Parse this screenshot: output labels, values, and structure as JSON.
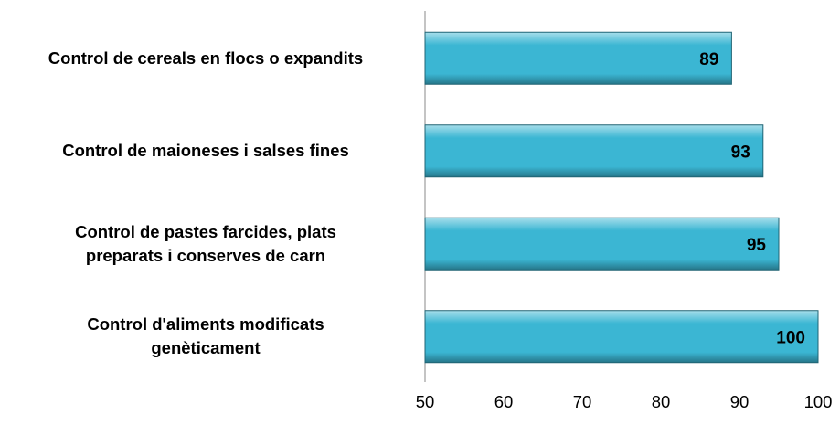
{
  "chart_data": {
    "type": "bar",
    "orientation": "horizontal",
    "categories": [
      "Control de cereals en flocs o expandits",
      "Control de maioneses i salses fines",
      "Control de pastes farcides, plats\npreparats i conserves de carn",
      "Control d'aliments modificats\ngenèticament"
    ],
    "values": [
      89,
      93,
      95,
      100
    ],
    "color": "#3bb6d3",
    "xlim": [
      50,
      100
    ],
    "xticks": [
      50,
      60,
      70,
      80,
      90,
      100
    ],
    "grid": false
  }
}
